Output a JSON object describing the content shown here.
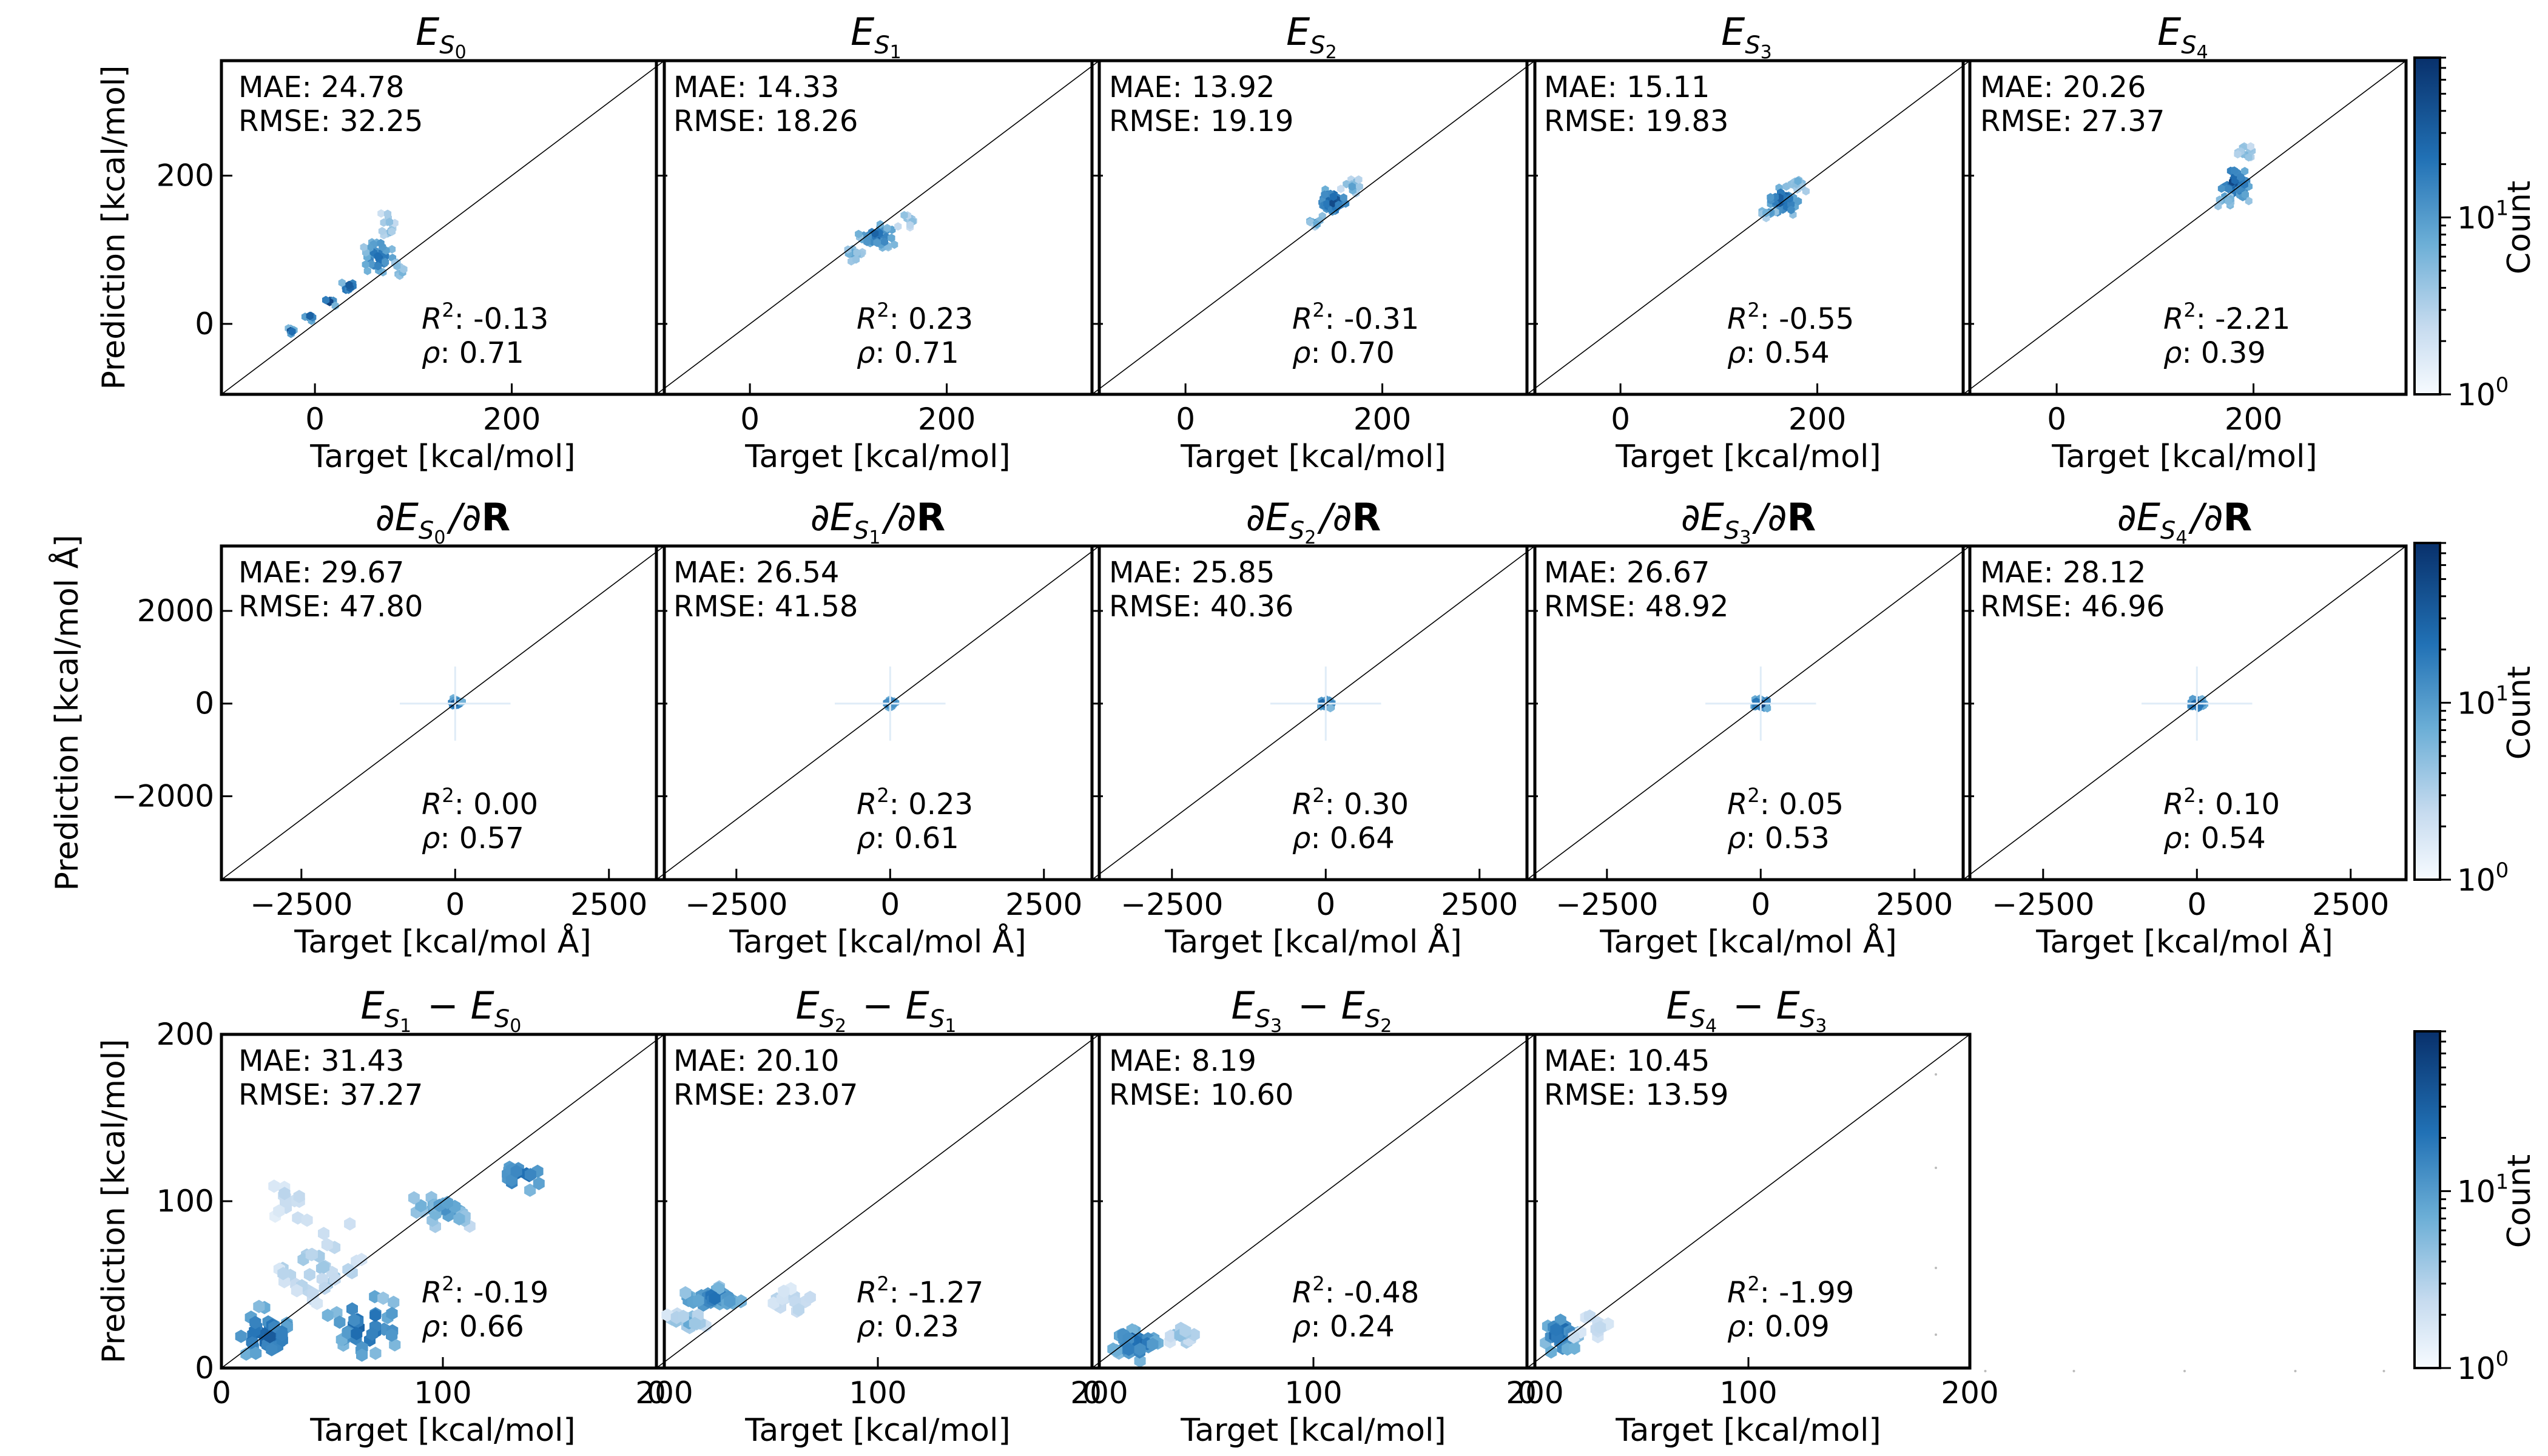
{
  "chart_data": {
    "type": "hexbin",
    "colorbar": {
      "label": "Count",
      "ticks": [
        "10^0",
        "10^1"
      ],
      "scale": "log",
      "min": 1,
      "max": 80
    },
    "panels": [
      {
        "row": 0,
        "col": 0,
        "title": "E_{S0}",
        "xlabel": "Target [kcal/mol]",
        "ylabel": "Prediction [kcal/mol]",
        "xlim": [
          -95,
          355
        ],
        "ylim": [
          -95,
          355
        ],
        "xticks": [
          0,
          200
        ],
        "yticks": [
          0,
          200
        ],
        "mae": "MAE: 24.78",
        "rmse": "RMSE: 32.25",
        "r2": "-0.13",
        "rho": "0.71"
      },
      {
        "row": 0,
        "col": 1,
        "title": "E_{S1}",
        "xlabel": "Target [kcal/mol]",
        "ylabel": "",
        "xlim": [
          -95,
          355
        ],
        "ylim": [
          -95,
          355
        ],
        "xticks": [
          0,
          200
        ],
        "yticks": [],
        "mae": "MAE: 14.33",
        "rmse": "RMSE: 18.26",
        "r2": "0.23",
        "rho": "0.71"
      },
      {
        "row": 0,
        "col": 2,
        "title": "E_{S2}",
        "xlabel": "Target [kcal/mol]",
        "ylabel": "",
        "xlim": [
          -95,
          355
        ],
        "ylim": [
          -95,
          355
        ],
        "xticks": [
          0,
          200
        ],
        "yticks": [],
        "mae": "MAE: 13.92",
        "rmse": "RMSE: 19.19",
        "r2": "-0.31",
        "rho": "0.70"
      },
      {
        "row": 0,
        "col": 3,
        "title": "E_{S3}",
        "xlabel": "Target [kcal/mol]",
        "ylabel": "",
        "xlim": [
          -95,
          355
        ],
        "ylim": [
          -95,
          355
        ],
        "xticks": [
          0,
          200
        ],
        "yticks": [],
        "mae": "MAE: 15.11",
        "rmse": "RMSE: 19.83",
        "r2": "-0.55",
        "rho": "0.54"
      },
      {
        "row": 0,
        "col": 4,
        "title": "E_{S4}",
        "xlabel": "Target [kcal/mol]",
        "ylabel": "",
        "xlim": [
          -95,
          355
        ],
        "ylim": [
          -95,
          355
        ],
        "xticks": [
          0,
          200
        ],
        "yticks": [],
        "mae": "MAE: 20.26",
        "rmse": "RMSE: 27.37",
        "r2": "-2.21",
        "rho": "0.39"
      },
      {
        "row": 1,
        "col": 0,
        "title": "∂E_{S0}/∂R",
        "xlabel": "Target [kcal/mol Å]",
        "ylabel": "Prediction [kcal/mol Å]",
        "xlim": [
          -3800,
          3400
        ],
        "ylim": [
          -3800,
          3400
        ],
        "xticks": [
          -2500,
          0,
          2500
        ],
        "yticks": [
          -2000,
          0,
          2000
        ],
        "mae": "MAE: 29.67",
        "rmse": "RMSE: 47.80",
        "r2": "0.00",
        "rho": "0.57"
      },
      {
        "row": 1,
        "col": 1,
        "title": "∂E_{S1}/∂R",
        "xlabel": "Target [kcal/mol Å]",
        "ylabel": "",
        "xlim": [
          -3800,
          3400
        ],
        "ylim": [
          -3800,
          3400
        ],
        "xticks": [
          -2500,
          0,
          2500
        ],
        "yticks": [],
        "mae": "MAE: 26.54",
        "rmse": "RMSE: 41.58",
        "r2": "0.23",
        "rho": "0.61"
      },
      {
        "row": 1,
        "col": 2,
        "title": "∂E_{S2}/∂R",
        "xlabel": "Target [kcal/mol Å]",
        "ylabel": "",
        "xlim": [
          -3800,
          3400
        ],
        "ylim": [
          -3800,
          3400
        ],
        "xticks": [
          -2500,
          0,
          2500
        ],
        "yticks": [],
        "mae": "MAE: 25.85",
        "rmse": "RMSE: 40.36",
        "r2": "0.30",
        "rho": "0.64"
      },
      {
        "row": 1,
        "col": 3,
        "title": "∂E_{S3}/∂R",
        "xlabel": "Target [kcal/mol Å]",
        "ylabel": "",
        "xlim": [
          -3800,
          3400
        ],
        "ylim": [
          -3800,
          3400
        ],
        "xticks": [
          -2500,
          0,
          2500
        ],
        "yticks": [],
        "mae": "MAE: 26.67",
        "rmse": "RMSE: 48.92",
        "r2": "0.05",
        "rho": "0.53"
      },
      {
        "row": 1,
        "col": 4,
        "title": "∂E_{S4}/∂R",
        "xlabel": "Target [kcal/mol Å]",
        "ylabel": "",
        "xlim": [
          -3800,
          3400
        ],
        "ylim": [
          -3800,
          3400
        ],
        "xticks": [
          -2500,
          0,
          2500
        ],
        "yticks": [],
        "mae": "MAE: 28.12",
        "rmse": "RMSE: 46.96",
        "r2": "0.10",
        "rho": "0.54"
      },
      {
        "row": 2,
        "col": 0,
        "title": "E_{S1} − E_{S0}",
        "xlabel": "Target [kcal/mol]",
        "ylabel": "Prediction [kcal/mol]",
        "xlim": [
          0,
          200
        ],
        "ylim": [
          0,
          200
        ],
        "xticks": [
          0,
          100,
          200
        ],
        "yticks": [
          0,
          100,
          200
        ],
        "mae": "MAE: 31.43",
        "rmse": "RMSE: 37.27",
        "r2": "-0.19",
        "rho": "0.66"
      },
      {
        "row": 2,
        "col": 1,
        "title": "E_{S2} − E_{S1}",
        "xlabel": "Target [kcal/mol]",
        "ylabel": "",
        "xlim": [
          0,
          200
        ],
        "ylim": [
          0,
          200
        ],
        "xticks": [
          0,
          100,
          200
        ],
        "yticks": [],
        "mae": "MAE: 20.10",
        "rmse": "RMSE: 23.07",
        "r2": "-1.27",
        "rho": "0.23"
      },
      {
        "row": 2,
        "col": 2,
        "title": "E_{S3} − E_{S2}",
        "xlabel": "Target [kcal/mol]",
        "ylabel": "",
        "xlim": [
          0,
          200
        ],
        "ylim": [
          0,
          200
        ],
        "xticks": [
          0,
          100,
          200
        ],
        "yticks": [],
        "mae": "MAE: 8.19",
        "rmse": "RMSE: 10.60",
        "r2": "-0.48",
        "rho": "0.24"
      },
      {
        "row": 2,
        "col": 3,
        "title": "E_{S4} − E_{S3}",
        "xlabel": "Target [kcal/mol]",
        "ylabel": "",
        "xlim": [
          0,
          200
        ],
        "ylim": [
          0,
          200
        ],
        "xticks": [
          0,
          100,
          200
        ],
        "yticks": [],
        "mae": "MAE: 10.45",
        "rmse": "RMSE: 13.59",
        "r2": "-1.99",
        "rho": "0.09"
      }
    ],
    "clusters": {
      "0": [
        {
          "x": -25,
          "y": -10,
          "dx": 6,
          "dy": 6,
          "n": 6,
          "level": 0.85
        },
        {
          "x": -5,
          "y": 10,
          "dx": 8,
          "dy": 8,
          "n": 6,
          "level": 0.85
        },
        {
          "x": 15,
          "y": 30,
          "dx": 9,
          "dy": 9,
          "n": 6,
          "level": 0.9
        },
        {
          "x": 35,
          "y": 50,
          "dx": 10,
          "dy": 12,
          "n": 8,
          "level": 0.9
        },
        {
          "x": 65,
          "y": 90,
          "dx": 20,
          "dy": 30,
          "n": 40,
          "level": 0.8
        },
        {
          "x": 75,
          "y": 130,
          "dx": 12,
          "dy": 30,
          "n": 14,
          "level": 0.45
        },
        {
          "x": 85,
          "y": 70,
          "dx": 12,
          "dy": 20,
          "n": 10,
          "level": 0.5
        }
      ],
      "1": [
        {
          "x": 130,
          "y": 118,
          "dx": 22,
          "dy": 20,
          "n": 40,
          "level": 0.85
        },
        {
          "x": 105,
          "y": 95,
          "dx": 18,
          "dy": 14,
          "n": 12,
          "level": 0.5
        },
        {
          "x": 160,
          "y": 140,
          "dx": 16,
          "dy": 14,
          "n": 12,
          "level": 0.45
        }
      ],
      "2": [
        {
          "x": 150,
          "y": 165,
          "dx": 20,
          "dy": 24,
          "n": 45,
          "level": 0.9
        },
        {
          "x": 170,
          "y": 185,
          "dx": 14,
          "dy": 18,
          "n": 14,
          "level": 0.5
        },
        {
          "x": 132,
          "y": 138,
          "dx": 10,
          "dy": 10,
          "n": 8,
          "level": 0.6
        }
      ],
      "3": [
        {
          "x": 165,
          "y": 165,
          "dx": 20,
          "dy": 24,
          "n": 45,
          "level": 0.9
        },
        {
          "x": 180,
          "y": 190,
          "dx": 15,
          "dy": 18,
          "n": 14,
          "level": 0.5
        },
        {
          "x": 150,
          "y": 150,
          "dx": 12,
          "dy": 10,
          "n": 8,
          "level": 0.6
        }
      ],
      "4": [
        {
          "x": 180,
          "y": 190,
          "dx": 22,
          "dy": 30,
          "n": 50,
          "level": 0.9
        },
        {
          "x": 190,
          "y": 230,
          "dx": 14,
          "dy": 18,
          "n": 12,
          "level": 0.45
        },
        {
          "x": 170,
          "y": 165,
          "dx": 14,
          "dy": 14,
          "n": 10,
          "level": 0.6
        }
      ],
      "5": [
        {
          "x": 0,
          "y": 0,
          "dx": 150,
          "dy": 150,
          "n": 30,
          "level": 0.85
        }
      ],
      "6": [
        {
          "x": 0,
          "y": 0,
          "dx": 120,
          "dy": 120,
          "n": 25,
          "level": 0.85
        }
      ],
      "7": [
        {
          "x": 0,
          "y": 0,
          "dx": 150,
          "dy": 150,
          "n": 30,
          "level": 0.9
        }
      ],
      "8": [
        {
          "x": 0,
          "y": 0,
          "dx": 180,
          "dy": 150,
          "n": 30,
          "level": 0.95
        }
      ],
      "9": [
        {
          "x": 0,
          "y": 0,
          "dx": 170,
          "dy": 150,
          "n": 30,
          "level": 0.95
        }
      ],
      "10": [
        {
          "x": 20,
          "y": 20,
          "dx": 20,
          "dy": 20,
          "n": 40,
          "level": 0.85
        },
        {
          "x": 65,
          "y": 25,
          "dx": 20,
          "dy": 22,
          "n": 40,
          "level": 0.85
        },
        {
          "x": 45,
          "y": 60,
          "dx": 30,
          "dy": 30,
          "n": 35,
          "level": 0.35
        },
        {
          "x": 100,
          "y": 95,
          "dx": 20,
          "dy": 12,
          "n": 25,
          "level": 0.6
        },
        {
          "x": 135,
          "y": 115,
          "dx": 15,
          "dy": 10,
          "n": 18,
          "level": 0.85
        },
        {
          "x": 30,
          "y": 100,
          "dx": 20,
          "dy": 15,
          "n": 15,
          "level": 0.25
        }
      ],
      "11": [
        {
          "x": 25,
          "y": 42,
          "dx": 20,
          "dy": 8,
          "n": 40,
          "level": 0.75
        },
        {
          "x": 15,
          "y": 28,
          "dx": 12,
          "dy": 6,
          "n": 20,
          "level": 0.5
        },
        {
          "x": 60,
          "y": 40,
          "dx": 15,
          "dy": 12,
          "n": 14,
          "level": 0.3
        }
      ],
      "12": [
        {
          "x": 20,
          "y": 15,
          "dx": 14,
          "dy": 12,
          "n": 40,
          "level": 0.85
        },
        {
          "x": 40,
          "y": 20,
          "dx": 10,
          "dy": 10,
          "n": 12,
          "level": 0.4
        }
      ],
      "13": [
        {
          "x": 15,
          "y": 20,
          "dx": 10,
          "dy": 14,
          "n": 40,
          "level": 0.85
        },
        {
          "x": 30,
          "y": 25,
          "dx": 12,
          "dy": 10,
          "n": 12,
          "level": 0.35
        }
      ]
    }
  }
}
